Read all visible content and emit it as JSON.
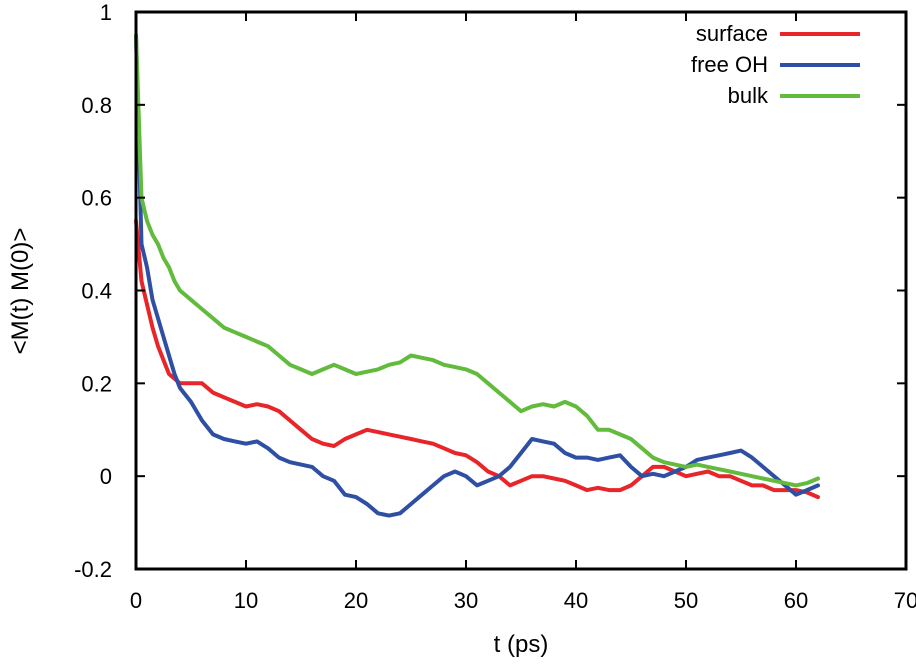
{
  "chart_data": {
    "type": "line",
    "title": "",
    "xlabel": "t (ps)",
    "ylabel": "<M(t) M(0)>",
    "xlim": [
      0,
      70
    ],
    "ylim": [
      -0.2,
      1
    ],
    "xticks": [
      0,
      10,
      20,
      30,
      40,
      50,
      60,
      70
    ],
    "yticks": [
      -0.2,
      0,
      0.2,
      0.4,
      0.6,
      0.8,
      1
    ],
    "xtick_labels": [
      "0",
      "10",
      "20",
      "30",
      "40",
      "50",
      "60",
      "70"
    ],
    "ytick_labels": [
      "-0.2",
      "0",
      "0.2",
      "0.4",
      "0.6",
      "0.8",
      "1"
    ],
    "grid": false,
    "legend_position": "top-right",
    "series": [
      {
        "name": "surface",
        "color": "#e8262a",
        "x": [
          0,
          0.5,
          1,
          1.5,
          2,
          2.5,
          3,
          3.5,
          4,
          5,
          6,
          7,
          8,
          9,
          10,
          11,
          12,
          13,
          14,
          15,
          16,
          17,
          18,
          19,
          20,
          21,
          22,
          23,
          24,
          25,
          26,
          27,
          28,
          29,
          30,
          31,
          32,
          33,
          34,
          35,
          36,
          37,
          38,
          39,
          40,
          41,
          42,
          43,
          44,
          45,
          46,
          47,
          48,
          49,
          50,
          51,
          52,
          53,
          54,
          55,
          56,
          57,
          58,
          59,
          60,
          61,
          62
        ],
        "y": [
          0.55,
          0.42,
          0.37,
          0.32,
          0.28,
          0.25,
          0.22,
          0.21,
          0.2,
          0.2,
          0.2,
          0.18,
          0.17,
          0.16,
          0.15,
          0.155,
          0.15,
          0.14,
          0.12,
          0.1,
          0.08,
          0.07,
          0.065,
          0.08,
          0.09,
          0.1,
          0.095,
          0.09,
          0.085,
          0.08,
          0.075,
          0.07,
          0.06,
          0.05,
          0.045,
          0.03,
          0.01,
          0.0,
          -0.02,
          -0.01,
          0.0,
          0.0,
          -0.005,
          -0.01,
          -0.02,
          -0.03,
          -0.025,
          -0.03,
          -0.03,
          -0.02,
          0.0,
          0.02,
          0.02,
          0.01,
          0.0,
          0.005,
          0.01,
          0.0,
          0.0,
          -0.01,
          -0.02,
          -0.02,
          -0.03,
          -0.03,
          -0.03,
          -0.035,
          -0.045
        ]
      },
      {
        "name": "free OH",
        "color": "#2e4fa3",
        "x": [
          0,
          0.5,
          1,
          1.5,
          2,
          2.5,
          3,
          3.5,
          4,
          5,
          6,
          7,
          8,
          9,
          10,
          11,
          12,
          13,
          14,
          15,
          16,
          17,
          18,
          19,
          20,
          21,
          22,
          23,
          24,
          25,
          26,
          27,
          28,
          29,
          30,
          31,
          32,
          33,
          34,
          35,
          36,
          37,
          38,
          39,
          40,
          41,
          42,
          43,
          44,
          45,
          46,
          47,
          48,
          49,
          50,
          51,
          52,
          53,
          54,
          55,
          56,
          57,
          58,
          59,
          60,
          61,
          62
        ],
        "y": [
          0.95,
          0.5,
          0.45,
          0.38,
          0.34,
          0.3,
          0.26,
          0.22,
          0.19,
          0.16,
          0.12,
          0.09,
          0.08,
          0.075,
          0.07,
          0.075,
          0.06,
          0.04,
          0.03,
          0.025,
          0.02,
          0.0,
          -0.01,
          -0.04,
          -0.045,
          -0.06,
          -0.08,
          -0.085,
          -0.08,
          -0.06,
          -0.04,
          -0.02,
          0.0,
          0.01,
          0.0,
          -0.02,
          -0.01,
          0.0,
          0.02,
          0.05,
          0.08,
          0.075,
          0.07,
          0.05,
          0.04,
          0.04,
          0.035,
          0.04,
          0.045,
          0.02,
          0.0,
          0.005,
          0.0,
          0.01,
          0.02,
          0.035,
          0.04,
          0.045,
          0.05,
          0.055,
          0.04,
          0.02,
          0.0,
          -0.02,
          -0.04,
          -0.03,
          -0.02
        ]
      },
      {
        "name": "bulk",
        "color": "#63bb3e",
        "x": [
          0,
          0.5,
          1,
          1.5,
          2,
          2.5,
          3,
          3.5,
          4,
          5,
          6,
          7,
          8,
          9,
          10,
          11,
          12,
          13,
          14,
          15,
          16,
          17,
          18,
          19,
          20,
          21,
          22,
          23,
          24,
          25,
          26,
          27,
          28,
          29,
          30,
          31,
          32,
          33,
          34,
          35,
          36,
          37,
          38,
          39,
          40,
          41,
          42,
          43,
          44,
          45,
          46,
          47,
          48,
          49,
          50,
          51,
          52,
          53,
          54,
          55,
          56,
          57,
          58,
          59,
          60,
          61,
          62
        ],
        "y": [
          0.95,
          0.6,
          0.55,
          0.52,
          0.5,
          0.47,
          0.45,
          0.42,
          0.4,
          0.38,
          0.36,
          0.34,
          0.32,
          0.31,
          0.3,
          0.29,
          0.28,
          0.26,
          0.24,
          0.23,
          0.22,
          0.23,
          0.24,
          0.23,
          0.22,
          0.225,
          0.23,
          0.24,
          0.245,
          0.26,
          0.255,
          0.25,
          0.24,
          0.235,
          0.23,
          0.22,
          0.2,
          0.18,
          0.16,
          0.14,
          0.15,
          0.155,
          0.15,
          0.16,
          0.15,
          0.13,
          0.1,
          0.1,
          0.09,
          0.08,
          0.06,
          0.04,
          0.03,
          0.025,
          0.02,
          0.025,
          0.02,
          0.015,
          0.01,
          0.005,
          0.0,
          -0.005,
          -0.01,
          -0.015,
          -0.02,
          -0.015,
          -0.005
        ]
      }
    ]
  }
}
